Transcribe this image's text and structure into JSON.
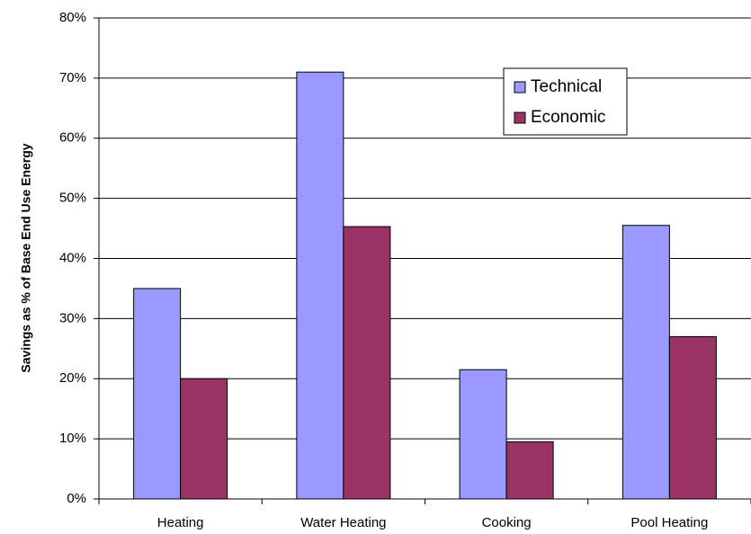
{
  "chart_data": {
    "type": "bar",
    "y_label": "Savings as % of Base End Use Energy",
    "categories": [
      "Heating",
      "Water Heating",
      "Cooking",
      "Pool Heating"
    ],
    "series": [
      {
        "name": "Technical",
        "color": "#9999ff",
        "values": [
          35,
          71,
          21.5,
          45.5
        ]
      },
      {
        "name": "Economic",
        "color": "#993366",
        "values": [
          20,
          45.3,
          9.5,
          27
        ]
      }
    ],
    "ylim": [
      0,
      80
    ],
    "yticks": [
      {
        "value": 0,
        "label": "0%"
      },
      {
        "value": 10,
        "label": "10%"
      },
      {
        "value": 20,
        "label": "20%"
      },
      {
        "value": 30,
        "label": "30%"
      },
      {
        "value": 40,
        "label": "40%"
      },
      {
        "value": 50,
        "label": "50%"
      },
      {
        "value": 60,
        "label": "60%"
      },
      {
        "value": 70,
        "label": "70%"
      },
      {
        "value": 80,
        "label": "80%"
      }
    ],
    "grid": true
  }
}
